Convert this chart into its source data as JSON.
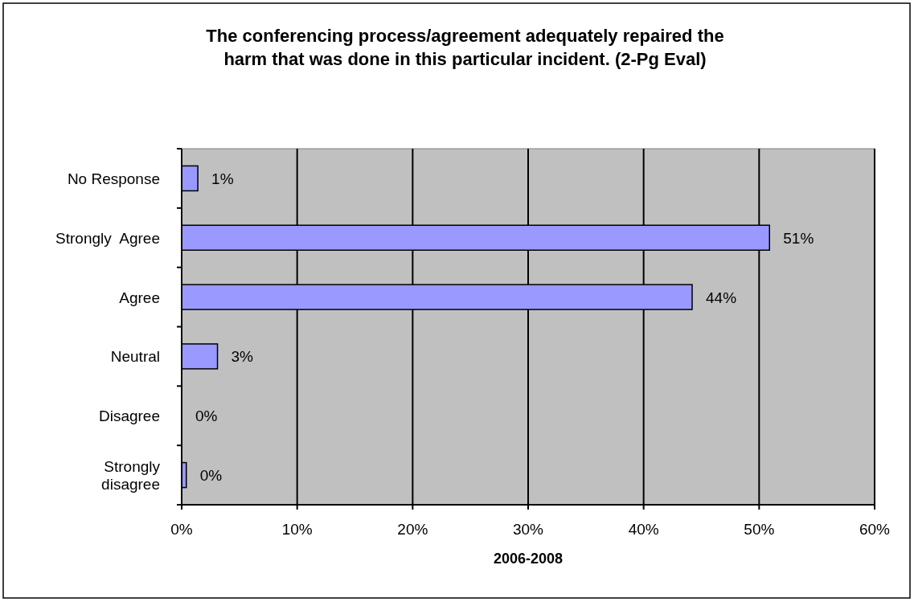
{
  "chart_data": {
    "type": "bar",
    "orientation": "horizontal",
    "title": "The conferencing process/agreement adequately repaired the harm that was done in this particular incident. (2-Pg Eval)",
    "xlabel": "2006-2008",
    "categories": [
      "No Response",
      "Strongly  Agree",
      "Agree",
      "Neutral",
      "Disagree",
      "Strongly disagree"
    ],
    "values": [
      1.4,
      50.9,
      44.2,
      3.1,
      0,
      0.4
    ],
    "value_labels": [
      "1%",
      "51%",
      "44%",
      "3%",
      "0%",
      "0%"
    ],
    "color": "#9999ff",
    "xlim": [
      0,
      60
    ],
    "xticks": [
      {
        "value": 0,
        "label": "0%"
      },
      {
        "value": 10,
        "label": "10%"
      },
      {
        "value": 20,
        "label": "20%"
      },
      {
        "value": 30,
        "label": "30%"
      },
      {
        "value": 40,
        "label": "40%"
      },
      {
        "value": 50,
        "label": "50%"
      },
      {
        "value": 60,
        "label": "60%"
      }
    ],
    "grid": "x"
  }
}
